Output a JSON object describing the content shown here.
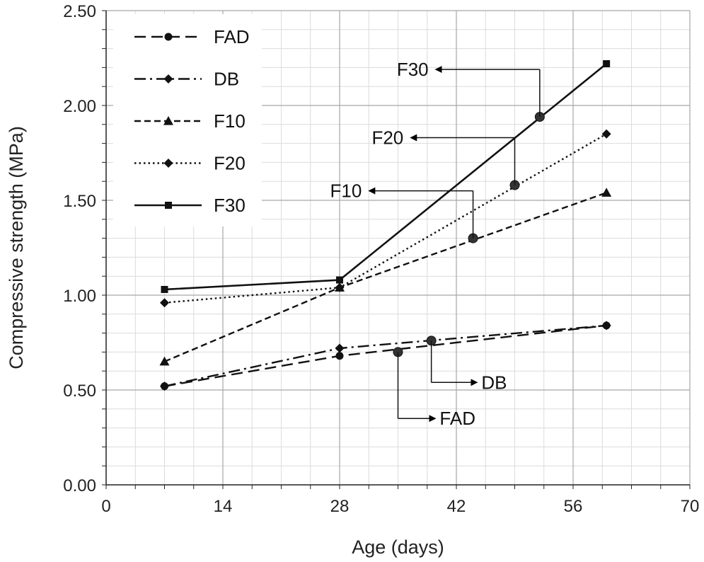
{
  "chart_data": {
    "type": "line",
    "title": "",
    "xlabel": "Age (days)",
    "ylabel": "Compressive strength (MPa)",
    "xlim": [
      0,
      70
    ],
    "ylim": [
      0,
      2.5
    ],
    "xticks": [
      0,
      14,
      28,
      42,
      56,
      70
    ],
    "xtick_labels": [
      "0",
      "14",
      "28",
      "42",
      "56",
      "70"
    ],
    "yticks": [
      0,
      0.5,
      1,
      1.5,
      2,
      2.5
    ],
    "ytick_labels": [
      "0.00",
      "0.50",
      "1.00",
      "1.50",
      "2.00",
      "2.50"
    ],
    "x_minor_step": 3.5,
    "y_minor_step": 0.1,
    "grid": true,
    "legend_position": "top-left",
    "series": [
      {
        "name": "FAD",
        "x": [
          7,
          28,
          60
        ],
        "values": [
          0.52,
          0.68,
          0.84
        ],
        "line": "dash",
        "marker": "circle"
      },
      {
        "name": "DB",
        "x": [
          7,
          28,
          60
        ],
        "values": [
          0.52,
          0.72,
          0.84
        ],
        "line": "dashdot",
        "marker": "diamond"
      },
      {
        "name": "F10",
        "x": [
          7,
          28,
          60
        ],
        "values": [
          0.65,
          1.04,
          1.54
        ],
        "line": "shortdash",
        "marker": "triangle"
      },
      {
        "name": "F20",
        "x": [
          7,
          28,
          60
        ],
        "values": [
          0.96,
          1.04,
          1.85
        ],
        "line": "dot",
        "marker": "diamond"
      },
      {
        "name": "F30",
        "x": [
          7,
          28,
          60
        ],
        "values": [
          1.03,
          1.08,
          2.22
        ],
        "line": "solid",
        "marker": "square"
      }
    ],
    "annotations": [
      {
        "label": "F30",
        "point": [
          52,
          1.94
        ],
        "corner": [
          52,
          2.19
        ],
        "label_at": [
          39,
          2.19
        ]
      },
      {
        "label": "F20",
        "point": [
          49,
          1.58
        ],
        "corner": [
          49,
          1.83
        ],
        "label_at": [
          36,
          1.83
        ]
      },
      {
        "label": "F10",
        "point": [
          44,
          1.3
        ],
        "corner": [
          44,
          1.55
        ],
        "label_at": [
          31,
          1.55
        ]
      },
      {
        "label": "DB",
        "point": [
          39,
          0.76
        ],
        "corner": [
          39,
          0.54
        ],
        "label_at": [
          45,
          0.54
        ]
      },
      {
        "label": "FAD",
        "point": [
          35,
          0.7
        ],
        "corner": [
          35,
          0.35
        ],
        "label_at": [
          40,
          0.35
        ]
      }
    ]
  }
}
